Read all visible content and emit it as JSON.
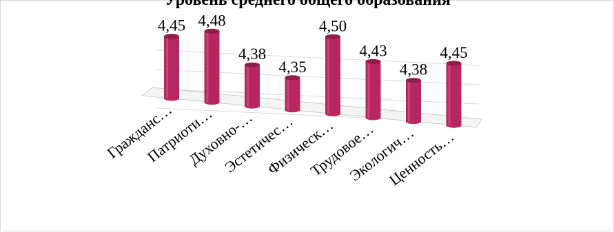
{
  "chart_data": {
    "type": "bar",
    "title": "Уровень среднего общего образования",
    "categories": [
      "Гражданс…",
      "Патриоти…",
      "Духовно-…",
      "Эстетичес…",
      "Физическ…",
      "Трудовое…",
      "Экологич…",
      "Ценность…"
    ],
    "series": [
      {
        "values": [
          4.45,
          4.48,
          4.38,
          4.35,
          4.5,
          4.43,
          4.38,
          4.45
        ],
        "labels": [
          "4,45",
          "4,48",
          "4,38",
          "4,35",
          "4,50",
          "4,43",
          "4,38",
          "4,45"
        ]
      }
    ],
    "bar_color": "#b7275f",
    "bar_style": "3d-cylinder",
    "grid": true,
    "legend": "none"
  }
}
